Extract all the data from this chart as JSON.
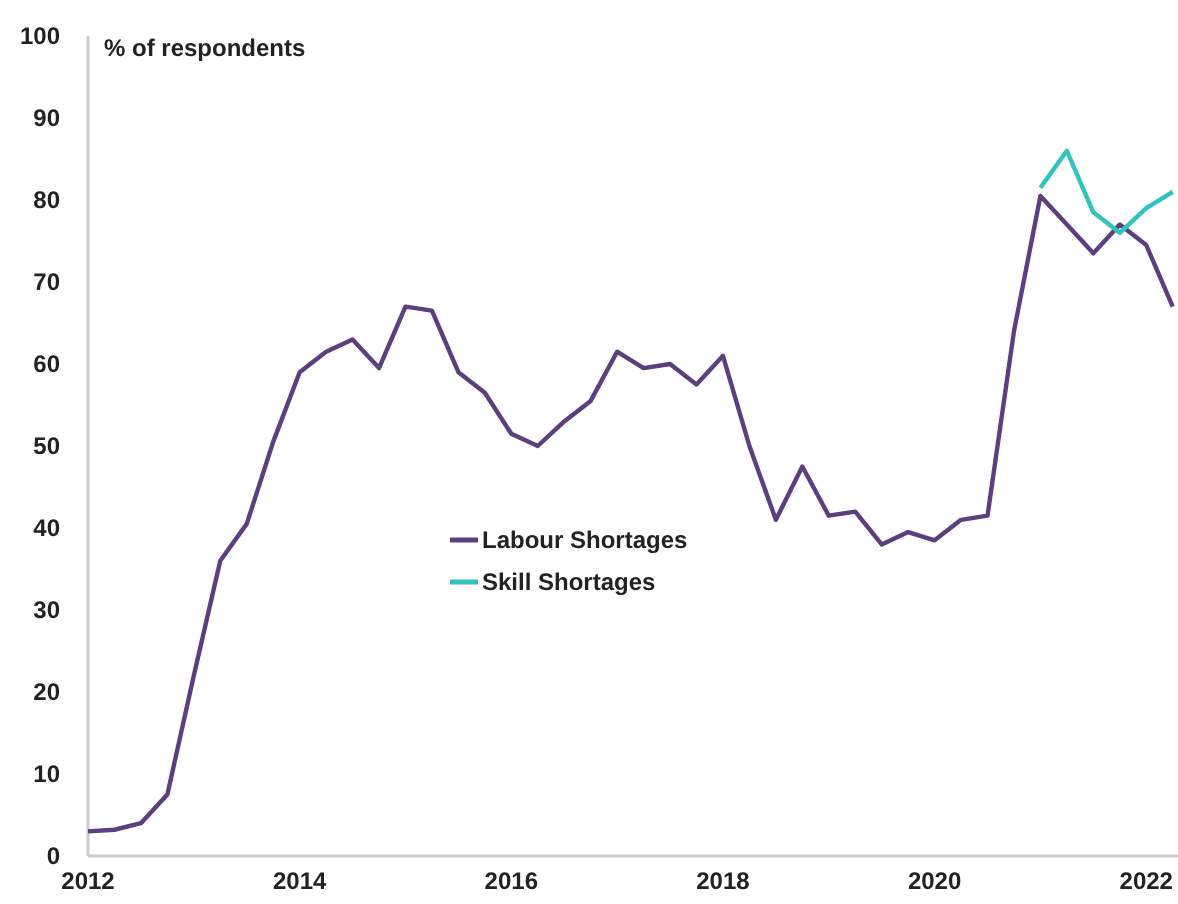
{
  "chart_data": {
    "type": "line",
    "ylabel": "% of respondents",
    "xlim": [
      2012,
      2022.3
    ],
    "xticks": [
      2012,
      2014,
      2016,
      2018,
      2020,
      2022
    ],
    "ylim": [
      0,
      100
    ],
    "yticks": [
      0,
      10,
      20,
      30,
      40,
      50,
      60,
      70,
      80,
      90,
      100
    ],
    "grid": false,
    "legend": "center",
    "marker": "none",
    "line_style": "solid",
    "series": [
      {
        "name": "Labour Shortages",
        "color": "#5b3f7f",
        "x": [
          2012,
          2012.25,
          2012.5,
          2012.75,
          2013,
          2013.25,
          2013.5,
          2013.75,
          2014,
          2014.25,
          2014.5,
          2014.75,
          2015,
          2015.25,
          2015.5,
          2015.75,
          2016,
          2016.25,
          2016.5,
          2016.75,
          2017,
          2017.25,
          2017.5,
          2017.75,
          2018,
          2018.25,
          2018.5,
          2018.75,
          2019,
          2019.25,
          2019.5,
          2019.75,
          2020,
          2020.25,
          2020.5,
          2020.75,
          2021,
          2021.25,
          2021.5,
          2021.75,
          2022,
          2022.25
        ],
        "values": [
          3,
          3.2,
          4,
          7.5,
          22,
          36,
          40.5,
          50.5,
          59,
          61.5,
          63,
          59.5,
          67,
          66.5,
          59,
          56.5,
          51.5,
          50,
          53,
          55.5,
          61.5,
          59.5,
          60,
          57.5,
          61,
          50,
          41,
          47.5,
          41.5,
          42,
          38,
          39.5,
          38.5,
          41,
          41.5,
          64,
          80.5,
          77,
          73.5,
          77,
          74.5,
          67
        ]
      },
      {
        "name": "Skill Shortages",
        "color": "#2fc4c0",
        "x": [
          2021,
          2021.25,
          2021.5,
          2021.75,
          2022,
          2022.25
        ],
        "values": [
          81.5,
          86,
          78.5,
          76,
          79,
          81
        ]
      }
    ]
  }
}
